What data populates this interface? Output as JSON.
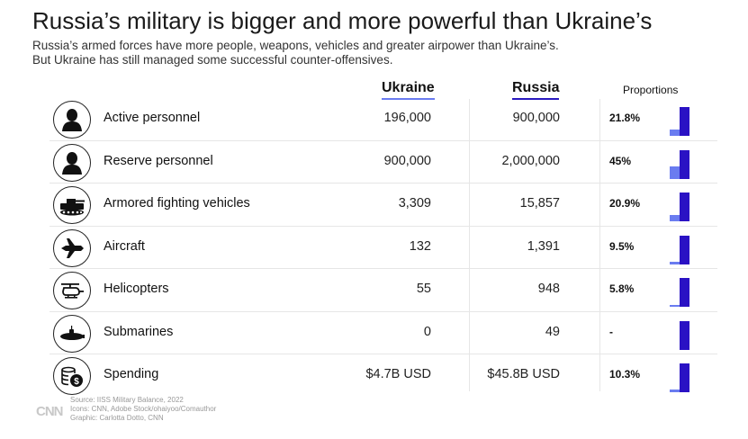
{
  "title": "Russia’s military is bigger and more powerful than Ukraine’s",
  "subtitle_line1": "Russia’s armed forces have more people, weapons, vehicles and greater airpower than Ukraine’s.",
  "subtitle_line2": "But Ukraine has still managed some successful counter-offensives.",
  "headers": {
    "ukraine": "Ukraine",
    "russia": "Russia",
    "proportions": "Proportions"
  },
  "colors": {
    "ukraine": "#6a7cf0",
    "russia": "#2a12c4"
  },
  "chart_data": {
    "type": "table",
    "title": "Russia’s military is bigger and more powerful than Ukraine’s",
    "columns": [
      "Ukraine",
      "Russia",
      "Proportions"
    ],
    "rows": [
      {
        "icon": "soldier-icon",
        "label": "Active personnel",
        "ukraine": "196,000",
        "russia": "900,000",
        "pct": "21.8%",
        "ratio": 0.218
      },
      {
        "icon": "soldier-icon",
        "label": "Reserve personnel",
        "ukraine": "900,000",
        "russia": "2,000,000",
        "pct": "45%",
        "ratio": 0.45
      },
      {
        "icon": "tank-icon",
        "label": "Armored fighting vehicles",
        "ukraine": "3,309",
        "russia": "15,857",
        "pct": "20.9%",
        "ratio": 0.209
      },
      {
        "icon": "jet-icon",
        "label": "Aircraft",
        "ukraine": "132",
        "russia": "1,391",
        "pct": "9.5%",
        "ratio": 0.095
      },
      {
        "icon": "helicopter-icon",
        "label": "Helicopters",
        "ukraine": "55",
        "russia": "948",
        "pct": "5.8%",
        "ratio": 0.058
      },
      {
        "icon": "submarine-icon",
        "label": "Submarines",
        "ukraine": "0",
        "russia": "49",
        "pct": "-",
        "ratio": 0
      },
      {
        "icon": "money-icon",
        "label": "Spending",
        "ukraine": "$4.7B USD",
        "russia": "$45.8B USD",
        "pct": "10.3%",
        "ratio": 0.103
      }
    ]
  },
  "source": {
    "line1": "Source:  IISS Military Balance, 2022",
    "line2": "Icons: CNN, Adobe Stock/ohaiyoo/Comauthor",
    "line3": "Graphic: Carlotta Dotto, CNN",
    "logo": "CNN"
  }
}
